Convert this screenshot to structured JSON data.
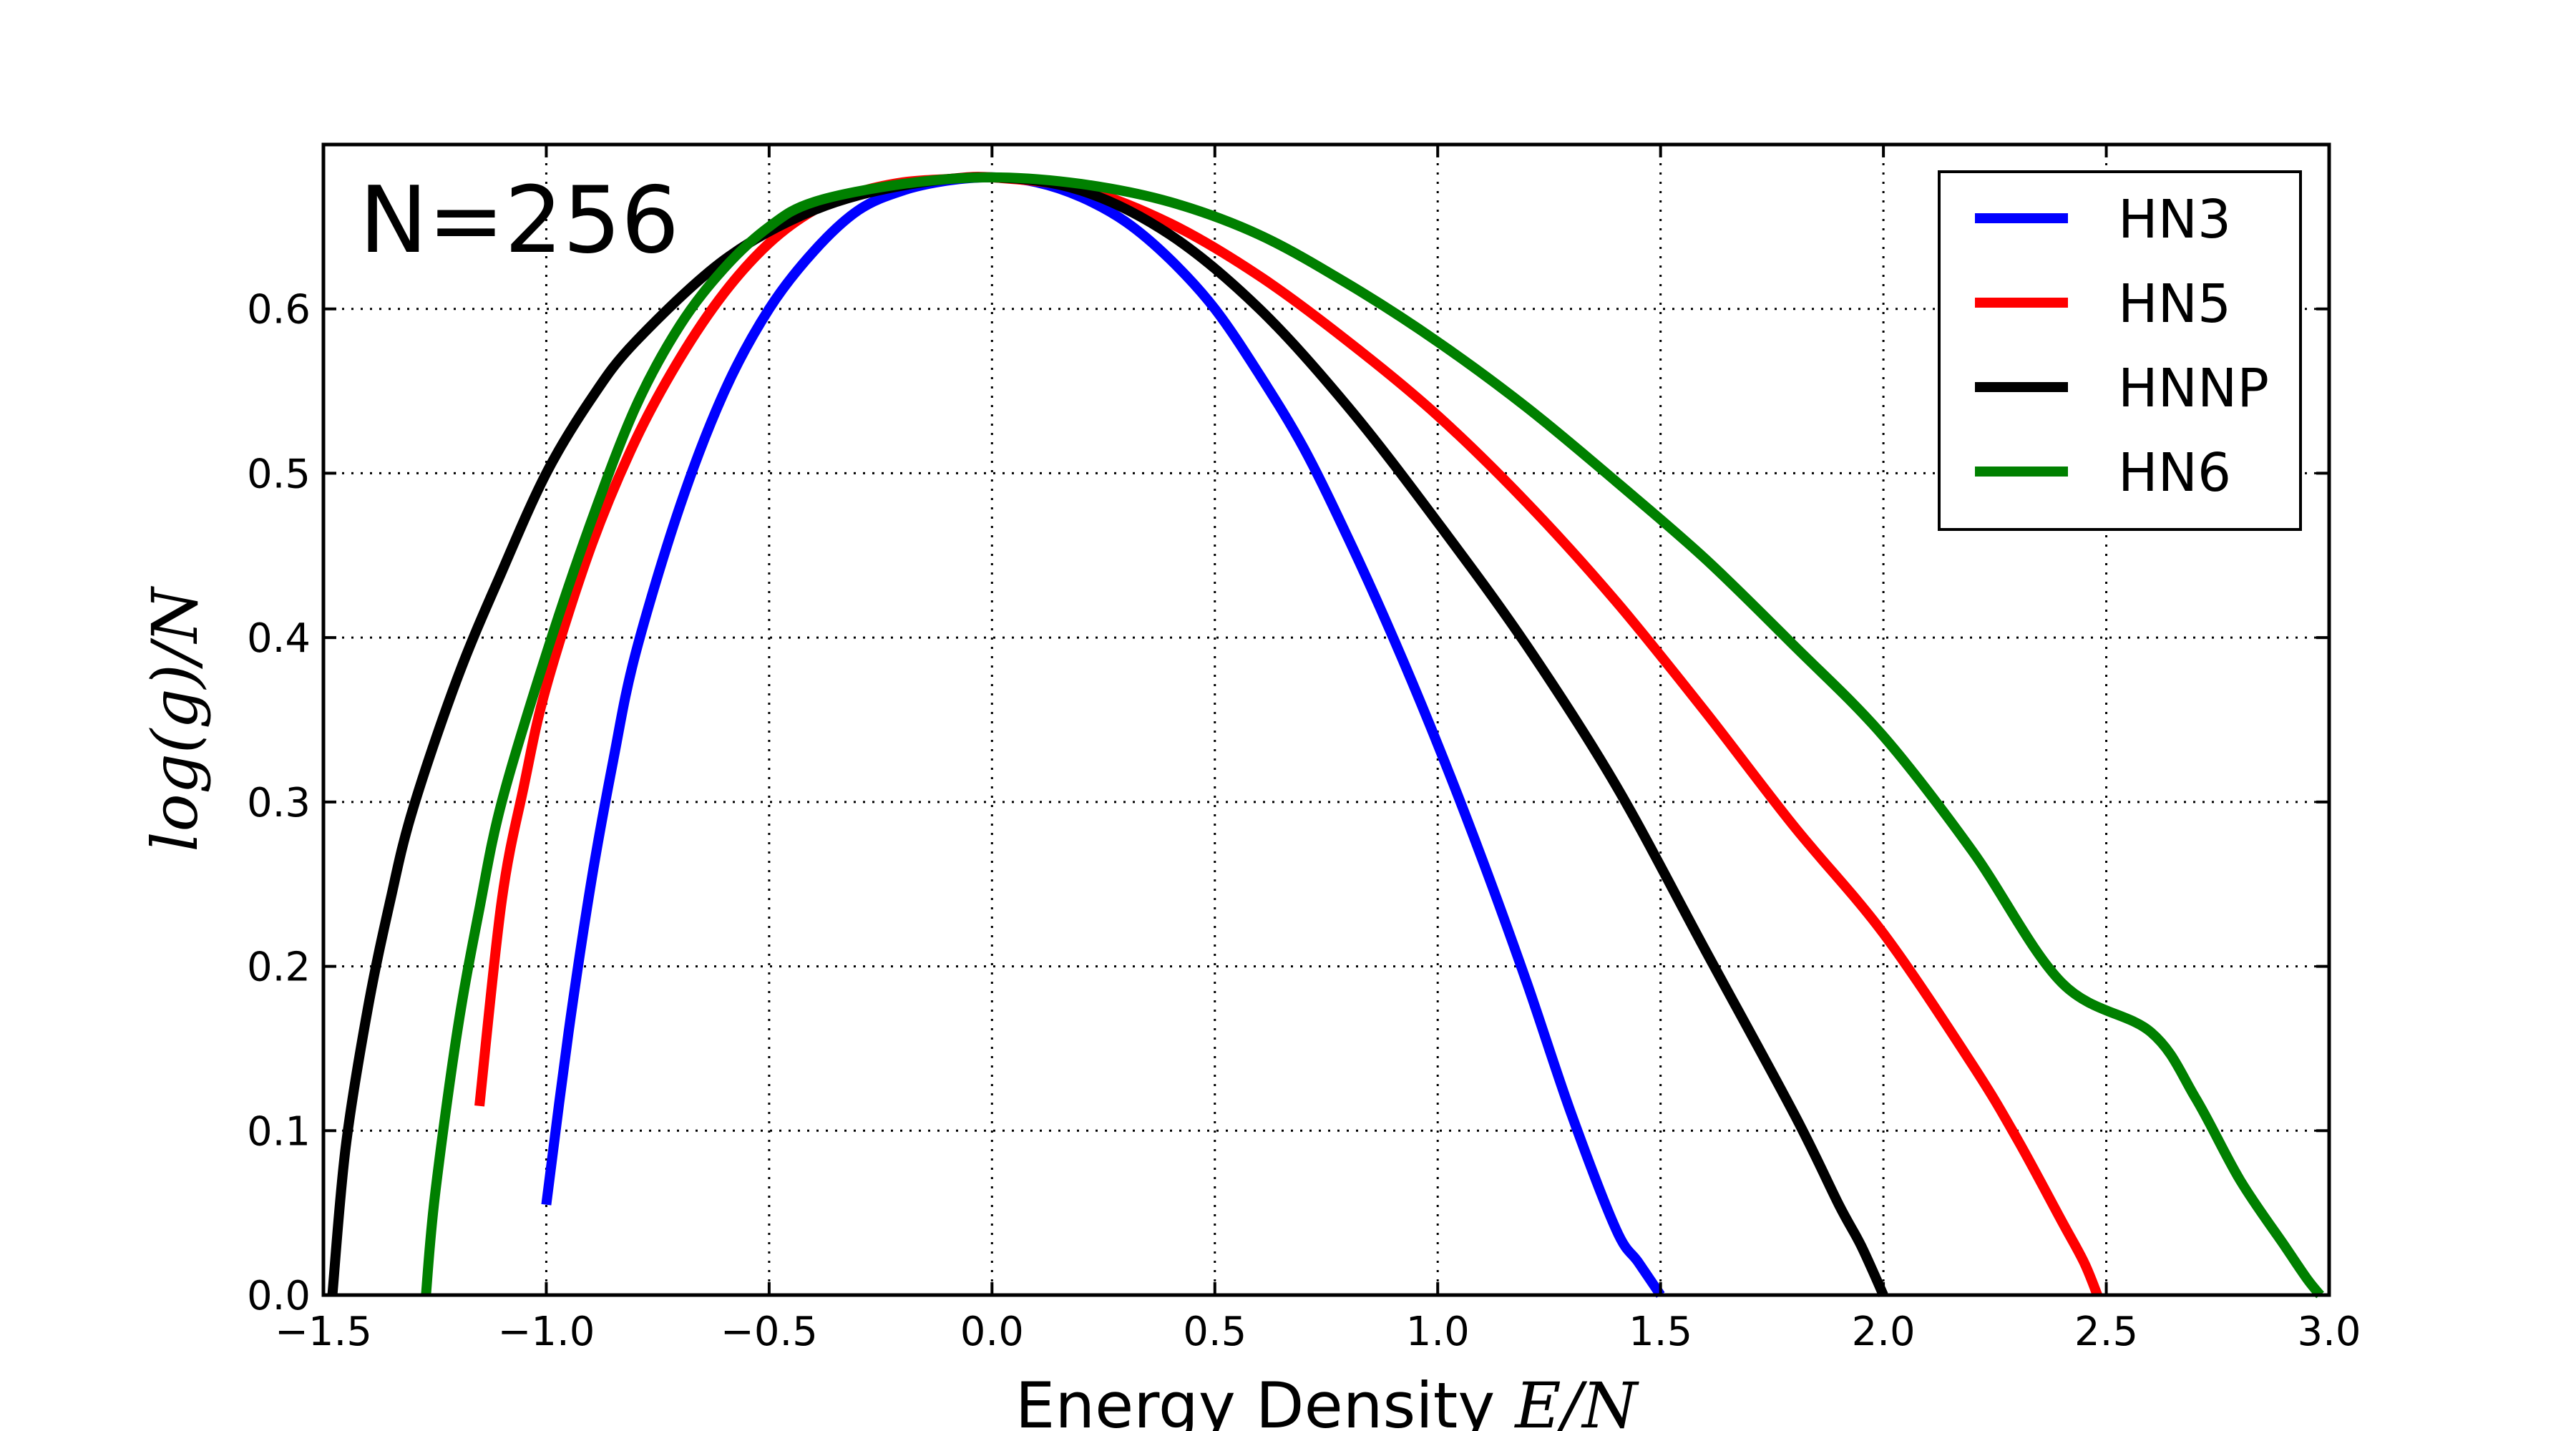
{
  "chart_data": {
    "type": "line",
    "annotation": "N=256",
    "xlabel": "Energy Density",
    "xlabel_math": "E/N",
    "ylabel": "log(g)/N",
    "xlim": [
      -1.5,
      3.0
    ],
    "ylim": [
      0.0,
      0.7
    ],
    "xticks": [
      -1.5,
      -1.0,
      -0.5,
      0.0,
      0.5,
      1.0,
      1.5,
      2.0,
      2.5,
      3.0
    ],
    "xtick_labels": [
      "−1.5",
      "−1.0",
      "−0.5",
      "0.0",
      "0.5",
      "1.0",
      "1.5",
      "2.0",
      "2.5",
      "3.0"
    ],
    "yticks": [
      0.0,
      0.1,
      0.2,
      0.3,
      0.4,
      0.5,
      0.6
    ],
    "ytick_labels": [
      "0.0",
      "0.1",
      "0.2",
      "0.3",
      "0.4",
      "0.5",
      "0.6"
    ],
    "grid": true,
    "legend_position": "top-right",
    "series": [
      {
        "name": "HN3",
        "color": "#0000ff",
        "x": [
          -1.0,
          -0.95,
          -0.9,
          -0.85,
          -0.8,
          -0.7,
          -0.6,
          -0.5,
          -0.4,
          -0.3,
          -0.2,
          -0.1,
          0.0,
          0.1,
          0.2,
          0.3,
          0.4,
          0.5,
          0.6,
          0.7,
          0.8,
          0.9,
          1.0,
          1.1,
          1.2,
          1.3,
          1.4,
          1.45,
          1.5
        ],
        "y": [
          0.055,
          0.16,
          0.25,
          0.325,
          0.39,
          0.48,
          0.55,
          0.6,
          0.635,
          0.66,
          0.672,
          0.678,
          0.68,
          0.677,
          0.668,
          0.653,
          0.63,
          0.6,
          0.56,
          0.515,
          0.46,
          0.4,
          0.335,
          0.265,
          0.19,
          0.11,
          0.04,
          0.02,
          0.0
        ]
      },
      {
        "name": "HN5",
        "color": "#ff0000",
        "x": [
          -1.15,
          -1.1,
          -1.05,
          -1.0,
          -0.9,
          -0.8,
          -0.7,
          -0.6,
          -0.5,
          -0.4,
          -0.3,
          -0.2,
          -0.1,
          0.0,
          0.2,
          0.4,
          0.6,
          0.8,
          1.0,
          1.2,
          1.4,
          1.6,
          1.8,
          2.0,
          2.2,
          2.3,
          2.4,
          2.45,
          2.48
        ],
        "y": [
          0.115,
          0.24,
          0.31,
          0.37,
          0.455,
          0.52,
          0.57,
          0.61,
          0.64,
          0.66,
          0.671,
          0.677,
          0.679,
          0.68,
          0.673,
          0.652,
          0.62,
          0.58,
          0.535,
          0.482,
          0.422,
          0.355,
          0.285,
          0.22,
          0.14,
          0.095,
          0.045,
          0.02,
          0.0
        ]
      },
      {
        "name": "HNNP",
        "color": "#000000",
        "x": [
          -1.48,
          -1.45,
          -1.4,
          -1.35,
          -1.3,
          -1.2,
          -1.1,
          -1.0,
          -0.9,
          -0.8,
          -0.6,
          -0.4,
          -0.2,
          0.0,
          0.2,
          0.4,
          0.6,
          0.8,
          1.0,
          1.2,
          1.4,
          1.6,
          1.8,
          1.9,
          1.95,
          2.0
        ],
        "y": [
          0.0,
          0.09,
          0.175,
          0.24,
          0.295,
          0.375,
          0.44,
          0.5,
          0.545,
          0.58,
          0.63,
          0.66,
          0.675,
          0.68,
          0.672,
          0.645,
          0.6,
          0.54,
          0.47,
          0.395,
          0.31,
          0.21,
          0.11,
          0.055,
          0.03,
          0.0
        ]
      },
      {
        "name": "HN6",
        "color": "#008000",
        "x": [
          -1.27,
          -1.25,
          -1.2,
          -1.15,
          -1.1,
          -1.0,
          -0.9,
          -0.8,
          -0.7,
          -0.6,
          -0.5,
          -0.4,
          -0.2,
          0.0,
          0.2,
          0.4,
          0.6,
          0.8,
          1.0,
          1.2,
          1.4,
          1.6,
          1.8,
          2.0,
          2.2,
          2.4,
          2.6,
          2.7,
          2.8,
          2.9,
          2.95,
          2.98
        ],
        "y": [
          0.0,
          0.06,
          0.16,
          0.235,
          0.3,
          0.39,
          0.47,
          0.54,
          0.59,
          0.625,
          0.65,
          0.665,
          0.676,
          0.68,
          0.676,
          0.665,
          0.645,
          0.615,
          0.58,
          0.54,
          0.495,
          0.448,
          0.395,
          0.34,
          0.27,
          0.19,
          0.16,
          0.12,
          0.07,
          0.03,
          0.01,
          0.0
        ]
      }
    ]
  }
}
